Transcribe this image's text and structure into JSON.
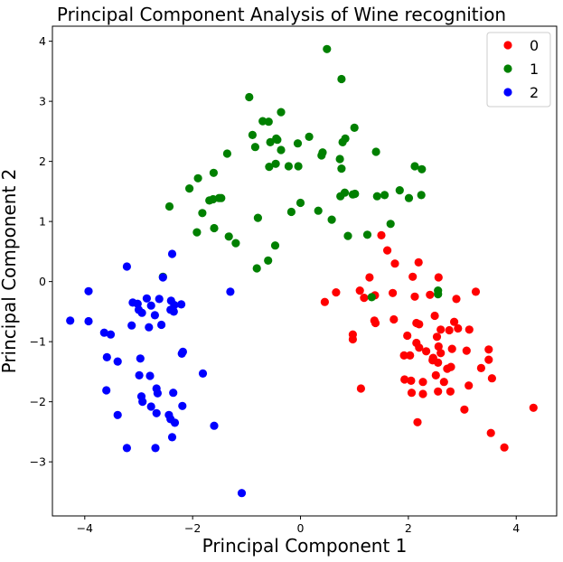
{
  "chart_data": {
    "type": "scatter",
    "title": "Principal Component Analysis of Wine recognition",
    "xlabel": "Principal Component 1",
    "ylabel": "Principal Component 2",
    "xlim": [
      -4.6,
      4.75
    ],
    "ylim": [
      -3.9,
      4.25
    ],
    "xticks": [
      -4,
      -2,
      0,
      2,
      4
    ],
    "yticks": [
      -3,
      -2,
      -1,
      0,
      1,
      2,
      3,
      4
    ],
    "grid": false,
    "legend_position": "top-right",
    "series": [
      {
        "name": "0",
        "color": "#ff0000",
        "points": [
          [
            1.5,
            0.77
          ],
          [
            1.61,
            0.52
          ],
          [
            1.75,
            0.3
          ],
          [
            2.08,
            0.08
          ],
          [
            2.19,
            0.32
          ],
          [
            2.56,
            0.07
          ],
          [
            0.66,
            -0.18
          ],
          [
            0.45,
            -0.34
          ],
          [
            1.1,
            -0.15
          ],
          [
            1.28,
            0.07
          ],
          [
            1.18,
            -0.27
          ],
          [
            1.38,
            -0.23
          ],
          [
            1.71,
            -0.19
          ],
          [
            2.12,
            -0.25
          ],
          [
            2.4,
            -0.22
          ],
          [
            2.89,
            -0.29
          ],
          [
            3.25,
            -0.17
          ],
          [
            1.37,
            -0.65
          ],
          [
            1.39,
            -0.69
          ],
          [
            1.73,
            -0.63
          ],
          [
            2.15,
            -0.69
          ],
          [
            2.2,
            -0.71
          ],
          [
            1.98,
            -0.9
          ],
          [
            2.49,
            -0.57
          ],
          [
            2.6,
            -0.8
          ],
          [
            2.76,
            -0.81
          ],
          [
            2.85,
            -0.67
          ],
          [
            2.92,
            -0.78
          ],
          [
            3.13,
            -0.8
          ],
          [
            0.97,
            -0.88
          ],
          [
            0.97,
            -0.96
          ],
          [
            2.15,
            -1.02
          ],
          [
            2.2,
            -1.1
          ],
          [
            2.33,
            -1.16
          ],
          [
            2.53,
            -0.92
          ],
          [
            2.56,
            -1.08
          ],
          [
            2.6,
            -1.19
          ],
          [
            2.81,
            -1.12
          ],
          [
            3.08,
            -1.15
          ],
          [
            1.92,
            -1.23
          ],
          [
            2.03,
            -1.23
          ],
          [
            2.45,
            -1.31
          ],
          [
            2.55,
            -1.35
          ],
          [
            2.46,
            -1.27
          ],
          [
            2.72,
            -1.45
          ],
          [
            2.79,
            -1.42
          ],
          [
            3.49,
            -1.13
          ],
          [
            3.49,
            -1.3
          ],
          [
            3.35,
            -1.44
          ],
          [
            3.12,
            -1.73
          ],
          [
            1.93,
            -1.63
          ],
          [
            2.05,
            -1.65
          ],
          [
            2.27,
            -1.67
          ],
          [
            2.51,
            -1.56
          ],
          [
            2.66,
            -1.67
          ],
          [
            2.78,
            -1.83
          ],
          [
            3.55,
            -1.61
          ],
          [
            1.12,
            -1.78
          ],
          [
            2.27,
            -1.87
          ],
          [
            2.55,
            -1.83
          ],
          [
            2.06,
            -1.85
          ],
          [
            3.04,
            -2.13
          ],
          [
            2.17,
            -2.34
          ],
          [
            3.53,
            -2.52
          ],
          [
            3.78,
            -2.76
          ],
          [
            4.32,
            -2.1
          ]
        ]
      },
      {
        "name": "1",
        "color": "#008000",
        "points": [
          [
            0.49,
            3.87
          ],
          [
            0.76,
            3.37
          ],
          [
            -0.95,
            3.07
          ],
          [
            -0.36,
            2.82
          ],
          [
            -0.7,
            2.67
          ],
          [
            -0.59,
            2.66
          ],
          [
            -0.45,
            2.38
          ],
          [
            -0.89,
            2.44
          ],
          [
            -0.84,
            2.24
          ],
          [
            -0.56,
            2.32
          ],
          [
            -0.43,
            2.36
          ],
          [
            -0.36,
            2.19
          ],
          [
            -0.05,
            2.3
          ],
          [
            0.16,
            2.41
          ],
          [
            1.0,
            2.56
          ],
          [
            0.78,
            2.32
          ],
          [
            0.83,
            2.38
          ],
          [
            1.4,
            2.16
          ],
          [
            -0.58,
            1.91
          ],
          [
            -0.46,
            1.96
          ],
          [
            -0.22,
            1.92
          ],
          [
            -0.04,
            1.92
          ],
          [
            0.39,
            2.1
          ],
          [
            0.41,
            2.15
          ],
          [
            0.73,
            2.04
          ],
          [
            0.76,
            1.88
          ],
          [
            2.12,
            1.92
          ],
          [
            2.25,
            1.87
          ],
          [
            -1.36,
            2.13
          ],
          [
            -1.61,
            1.81
          ],
          [
            -1.9,
            1.72
          ],
          [
            -2.06,
            1.55
          ],
          [
            -1.69,
            1.35
          ],
          [
            -1.62,
            1.37
          ],
          [
            -1.47,
            1.39
          ],
          [
            -1.51,
            1.39
          ],
          [
            -1.82,
            1.14
          ],
          [
            -2.43,
            1.25
          ],
          [
            0.0,
            1.31
          ],
          [
            0.33,
            1.18
          ],
          [
            -0.17,
            1.16
          ],
          [
            0.74,
            1.42
          ],
          [
            0.82,
            1.48
          ],
          [
            0.97,
            1.45
          ],
          [
            1.01,
            1.46
          ],
          [
            1.42,
            1.42
          ],
          [
            1.56,
            1.44
          ],
          [
            1.84,
            1.52
          ],
          [
            2.01,
            1.39
          ],
          [
            2.24,
            1.44
          ],
          [
            -0.79,
            1.06
          ],
          [
            0.58,
            1.03
          ],
          [
            -1.92,
            0.82
          ],
          [
            -1.6,
            0.89
          ],
          [
            -1.33,
            0.75
          ],
          [
            -1.2,
            0.64
          ],
          [
            -0.47,
            0.6
          ],
          [
            -0.6,
            0.35
          ],
          [
            -0.81,
            0.22
          ],
          [
            0.88,
            0.76
          ],
          [
            1.24,
            0.78
          ],
          [
            1.67,
            0.96
          ],
          [
            -2.55,
            0.08
          ],
          [
            1.32,
            -0.26
          ],
          [
            2.55,
            -0.15
          ],
          [
            2.55,
            -0.21
          ]
        ]
      },
      {
        "name": "2",
        "color": "#0000ff",
        "points": [
          [
            -3.22,
            0.25
          ],
          [
            -2.38,
            0.46
          ],
          [
            -2.55,
            0.07
          ],
          [
            -3.93,
            -0.16
          ],
          [
            -2.85,
            -0.28
          ],
          [
            -2.62,
            -0.29
          ],
          [
            -3.11,
            -0.35
          ],
          [
            -3.02,
            -0.37
          ],
          [
            -2.4,
            -0.32
          ],
          [
            -2.34,
            -0.39
          ],
          [
            -2.21,
            -0.38
          ],
          [
            -2.77,
            -0.4
          ],
          [
            -3.0,
            -0.47
          ],
          [
            -2.94,
            -0.52
          ],
          [
            -2.7,
            -0.56
          ],
          [
            -2.41,
            -0.47
          ],
          [
            -2.35,
            -0.5
          ],
          [
            -1.3,
            -0.17
          ],
          [
            -4.27,
            -0.65
          ],
          [
            -3.93,
            -0.66
          ],
          [
            -3.13,
            -0.73
          ],
          [
            -2.81,
            -0.76
          ],
          [
            -2.58,
            -0.72
          ],
          [
            -3.64,
            -0.85
          ],
          [
            -3.52,
            -0.88
          ],
          [
            -3.39,
            -1.33
          ],
          [
            -3.59,
            -1.26
          ],
          [
            -2.18,
            -1.17
          ],
          [
            -2.2,
            -1.2
          ],
          [
            -2.97,
            -1.28
          ],
          [
            -2.99,
            -1.56
          ],
          [
            -2.79,
            -1.57
          ],
          [
            -1.81,
            -1.53
          ],
          [
            -3.6,
            -1.81
          ],
          [
            -2.95,
            -1.91
          ],
          [
            -2.93,
            -2.0
          ],
          [
            -2.67,
            -1.78
          ],
          [
            -2.36,
            -1.85
          ],
          [
            -2.65,
            -1.86
          ],
          [
            -2.19,
            -2.07
          ],
          [
            -2.77,
            -2.08
          ],
          [
            -3.39,
            -2.22
          ],
          [
            -2.67,
            -2.19
          ],
          [
            -2.44,
            -2.22
          ],
          [
            -2.41,
            -2.29
          ],
          [
            -2.33,
            -2.35
          ],
          [
            -1.6,
            -2.4
          ],
          [
            -2.38,
            -2.59
          ],
          [
            -3.22,
            -2.77
          ],
          [
            -2.69,
            -2.77
          ],
          [
            -1.09,
            -3.52
          ]
        ]
      }
    ]
  }
}
